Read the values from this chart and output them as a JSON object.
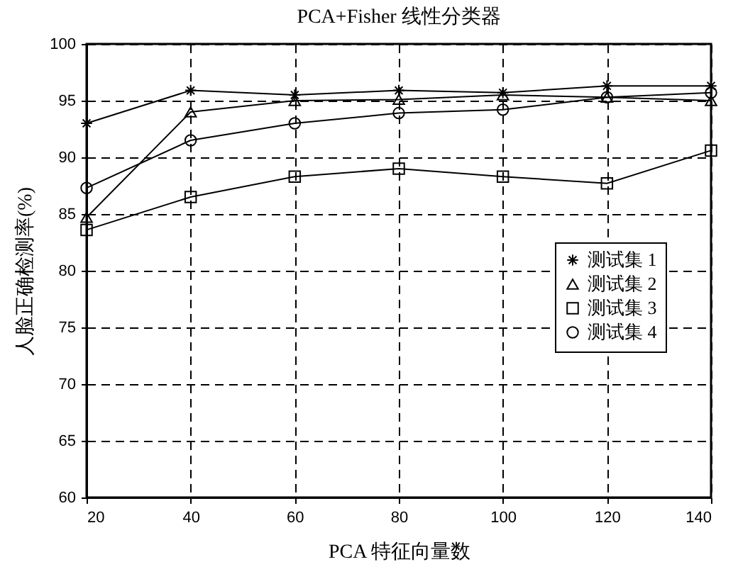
{
  "chart_data": {
    "type": "line",
    "title": "PCA+Fisher 线性分类器",
    "xlabel": "PCA 特征向量数",
    "ylabel": "人脸正确检测率(%)",
    "x": [
      20,
      40,
      60,
      80,
      100,
      120,
      140
    ],
    "series": [
      {
        "name": "测试集 1",
        "color": "#000000",
        "marker": "cross",
        "values": [
          93,
          95.9,
          95.5,
          95.9,
          95.7,
          96.3,
          96.3
        ]
      },
      {
        "name": "测试集 2",
        "color": "#000000",
        "marker": "triangle",
        "values": [
          84.7,
          94,
          95,
          95.1,
          95.5,
          95.3,
          95
        ]
      },
      {
        "name": "测试集 3",
        "color": "#000000",
        "marker": "square",
        "values": [
          83.6,
          86.5,
          88.3,
          89,
          88.3,
          87.7,
          90.6
        ]
      },
      {
        "name": "测试集 4",
        "color": "#000000",
        "marker": "circle",
        "values": [
          87.3,
          91.5,
          93,
          93.9,
          94.2,
          95.3,
          95.7
        ]
      }
    ],
    "xlim": [
      20,
      140
    ],
    "xticks": [
      20,
      40,
      60,
      80,
      100,
      120,
      140
    ],
    "ylim": [
      60,
      100
    ],
    "yticks": [
      60,
      65,
      70,
      75,
      80,
      85,
      90,
      95,
      100
    ],
    "grid": true,
    "legend": "right",
    "line_style": "solid"
  }
}
